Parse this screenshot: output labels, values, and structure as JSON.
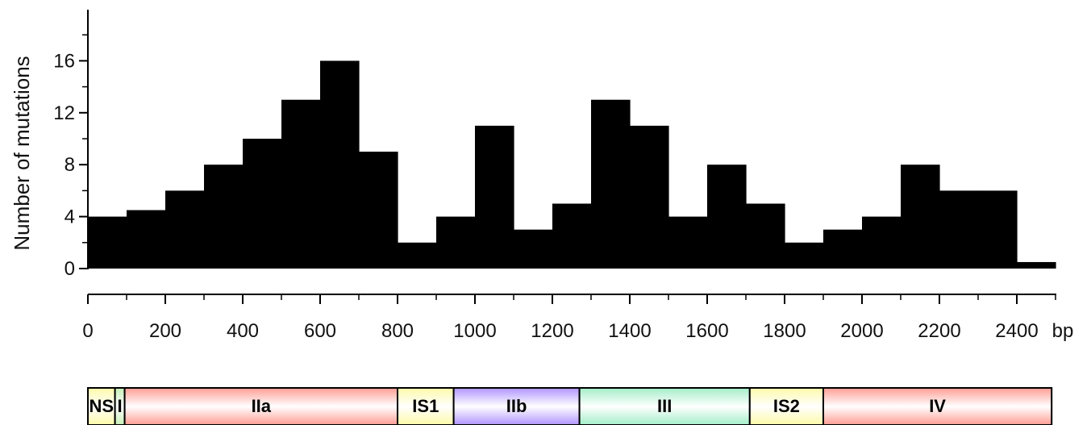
{
  "chart_data": {
    "type": "bar",
    "ylabel": "Number of mutations",
    "x_unit": "bp",
    "xlim": [
      0,
      2450
    ],
    "ylim": [
      0,
      20
    ],
    "y_ticks": [
      0,
      4,
      8,
      12,
      16
    ],
    "x_ticks": [
      0,
      200,
      400,
      600,
      800,
      1000,
      1200,
      1400,
      1600,
      1800,
      2000,
      2200,
      2400
    ],
    "bin_width": 100,
    "bins": [
      {
        "start": 0,
        "value": 4
      },
      {
        "start": 100,
        "value": 4.5
      },
      {
        "start": 200,
        "value": 6
      },
      {
        "start": 300,
        "value": 8
      },
      {
        "start": 400,
        "value": 10
      },
      {
        "start": 500,
        "value": 13
      },
      {
        "start": 600,
        "value": 16
      },
      {
        "start": 700,
        "value": 9
      },
      {
        "start": 800,
        "value": 2
      },
      {
        "start": 900,
        "value": 4
      },
      {
        "start": 1000,
        "value": 11
      },
      {
        "start": 1100,
        "value": 3
      },
      {
        "start": 1200,
        "value": 5
      },
      {
        "start": 1300,
        "value": 13
      },
      {
        "start": 1400,
        "value": 11
      },
      {
        "start": 1500,
        "value": 4
      },
      {
        "start": 1600,
        "value": 8
      },
      {
        "start": 1700,
        "value": 5
      },
      {
        "start": 1800,
        "value": 2
      },
      {
        "start": 1900,
        "value": 3
      },
      {
        "start": 2000,
        "value": 4
      },
      {
        "start": 2100,
        "value": 8
      },
      {
        "start": 2200,
        "value": 6
      },
      {
        "start": 2300,
        "value": 6
      },
      {
        "start": 2400,
        "value": 0.5
      }
    ],
    "bar_color": "#000000",
    "grid": false,
    "domains": [
      {
        "label": "NS",
        "start": 0,
        "end": 70,
        "color": "#fdfaa8"
      },
      {
        "label": "I",
        "start": 70,
        "end": 95,
        "color": "#c6efb6"
      },
      {
        "label": "IIa",
        "start": 95,
        "end": 800,
        "color": "#ff9d93"
      },
      {
        "label": "IS1",
        "start": 800,
        "end": 945,
        "color": "#fdfaa8"
      },
      {
        "label": "IIb",
        "start": 945,
        "end": 1270,
        "color": "#b094ff"
      },
      {
        "label": "III",
        "start": 1270,
        "end": 1710,
        "color": "#a3edc8"
      },
      {
        "label": "IS2",
        "start": 1710,
        "end": 1900,
        "color": "#fdfaa8"
      },
      {
        "label": "IV",
        "start": 1900,
        "end": 2490,
        "color": "#ff9d93"
      }
    ]
  }
}
